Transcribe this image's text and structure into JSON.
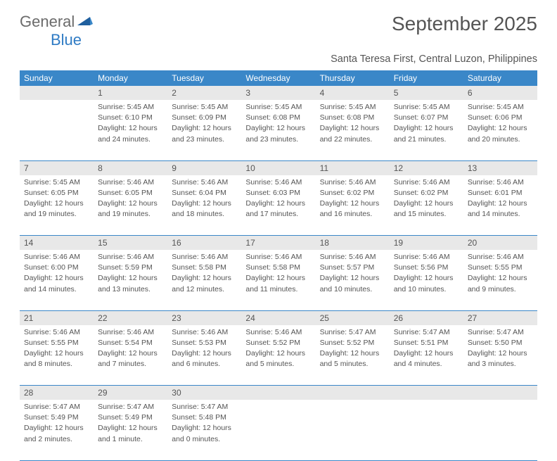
{
  "brand": {
    "part1": "General",
    "part2": "Blue"
  },
  "title": "September 2025",
  "subtitle": "Santa Teresa First, Central Luzon, Philippines",
  "colors": {
    "header_bg": "#3a87c8",
    "header_text": "#ffffff",
    "daynum_bg": "#e8e8e8",
    "rule": "#3a87c8",
    "text": "#555555",
    "logo_gray": "#6b6b6b",
    "logo_blue": "#2f7bc4",
    "page_bg": "#ffffff"
  },
  "weekdays": [
    "Sunday",
    "Monday",
    "Tuesday",
    "Wednesday",
    "Thursday",
    "Friday",
    "Saturday"
  ],
  "weeks": [
    [
      null,
      {
        "n": "1",
        "sr": "Sunrise: 5:45 AM",
        "ss": "Sunset: 6:10 PM",
        "d1": "Daylight: 12 hours",
        "d2": "and 24 minutes."
      },
      {
        "n": "2",
        "sr": "Sunrise: 5:45 AM",
        "ss": "Sunset: 6:09 PM",
        "d1": "Daylight: 12 hours",
        "d2": "and 23 minutes."
      },
      {
        "n": "3",
        "sr": "Sunrise: 5:45 AM",
        "ss": "Sunset: 6:08 PM",
        "d1": "Daylight: 12 hours",
        "d2": "and 23 minutes."
      },
      {
        "n": "4",
        "sr": "Sunrise: 5:45 AM",
        "ss": "Sunset: 6:08 PM",
        "d1": "Daylight: 12 hours",
        "d2": "and 22 minutes."
      },
      {
        "n": "5",
        "sr": "Sunrise: 5:45 AM",
        "ss": "Sunset: 6:07 PM",
        "d1": "Daylight: 12 hours",
        "d2": "and 21 minutes."
      },
      {
        "n": "6",
        "sr": "Sunrise: 5:45 AM",
        "ss": "Sunset: 6:06 PM",
        "d1": "Daylight: 12 hours",
        "d2": "and 20 minutes."
      }
    ],
    [
      {
        "n": "7",
        "sr": "Sunrise: 5:45 AM",
        "ss": "Sunset: 6:05 PM",
        "d1": "Daylight: 12 hours",
        "d2": "and 19 minutes."
      },
      {
        "n": "8",
        "sr": "Sunrise: 5:46 AM",
        "ss": "Sunset: 6:05 PM",
        "d1": "Daylight: 12 hours",
        "d2": "and 19 minutes."
      },
      {
        "n": "9",
        "sr": "Sunrise: 5:46 AM",
        "ss": "Sunset: 6:04 PM",
        "d1": "Daylight: 12 hours",
        "d2": "and 18 minutes."
      },
      {
        "n": "10",
        "sr": "Sunrise: 5:46 AM",
        "ss": "Sunset: 6:03 PM",
        "d1": "Daylight: 12 hours",
        "d2": "and 17 minutes."
      },
      {
        "n": "11",
        "sr": "Sunrise: 5:46 AM",
        "ss": "Sunset: 6:02 PM",
        "d1": "Daylight: 12 hours",
        "d2": "and 16 minutes."
      },
      {
        "n": "12",
        "sr": "Sunrise: 5:46 AM",
        "ss": "Sunset: 6:02 PM",
        "d1": "Daylight: 12 hours",
        "d2": "and 15 minutes."
      },
      {
        "n": "13",
        "sr": "Sunrise: 5:46 AM",
        "ss": "Sunset: 6:01 PM",
        "d1": "Daylight: 12 hours",
        "d2": "and 14 minutes."
      }
    ],
    [
      {
        "n": "14",
        "sr": "Sunrise: 5:46 AM",
        "ss": "Sunset: 6:00 PM",
        "d1": "Daylight: 12 hours",
        "d2": "and 14 minutes."
      },
      {
        "n": "15",
        "sr": "Sunrise: 5:46 AM",
        "ss": "Sunset: 5:59 PM",
        "d1": "Daylight: 12 hours",
        "d2": "and 13 minutes."
      },
      {
        "n": "16",
        "sr": "Sunrise: 5:46 AM",
        "ss": "Sunset: 5:58 PM",
        "d1": "Daylight: 12 hours",
        "d2": "and 12 minutes."
      },
      {
        "n": "17",
        "sr": "Sunrise: 5:46 AM",
        "ss": "Sunset: 5:58 PM",
        "d1": "Daylight: 12 hours",
        "d2": "and 11 minutes."
      },
      {
        "n": "18",
        "sr": "Sunrise: 5:46 AM",
        "ss": "Sunset: 5:57 PM",
        "d1": "Daylight: 12 hours",
        "d2": "and 10 minutes."
      },
      {
        "n": "19",
        "sr": "Sunrise: 5:46 AM",
        "ss": "Sunset: 5:56 PM",
        "d1": "Daylight: 12 hours",
        "d2": "and 10 minutes."
      },
      {
        "n": "20",
        "sr": "Sunrise: 5:46 AM",
        "ss": "Sunset: 5:55 PM",
        "d1": "Daylight: 12 hours",
        "d2": "and 9 minutes."
      }
    ],
    [
      {
        "n": "21",
        "sr": "Sunrise: 5:46 AM",
        "ss": "Sunset: 5:55 PM",
        "d1": "Daylight: 12 hours",
        "d2": "and 8 minutes."
      },
      {
        "n": "22",
        "sr": "Sunrise: 5:46 AM",
        "ss": "Sunset: 5:54 PM",
        "d1": "Daylight: 12 hours",
        "d2": "and 7 minutes."
      },
      {
        "n": "23",
        "sr": "Sunrise: 5:46 AM",
        "ss": "Sunset: 5:53 PM",
        "d1": "Daylight: 12 hours",
        "d2": "and 6 minutes."
      },
      {
        "n": "24",
        "sr": "Sunrise: 5:46 AM",
        "ss": "Sunset: 5:52 PM",
        "d1": "Daylight: 12 hours",
        "d2": "and 5 minutes."
      },
      {
        "n": "25",
        "sr": "Sunrise: 5:47 AM",
        "ss": "Sunset: 5:52 PM",
        "d1": "Daylight: 12 hours",
        "d2": "and 5 minutes."
      },
      {
        "n": "26",
        "sr": "Sunrise: 5:47 AM",
        "ss": "Sunset: 5:51 PM",
        "d1": "Daylight: 12 hours",
        "d2": "and 4 minutes."
      },
      {
        "n": "27",
        "sr": "Sunrise: 5:47 AM",
        "ss": "Sunset: 5:50 PM",
        "d1": "Daylight: 12 hours",
        "d2": "and 3 minutes."
      }
    ],
    [
      {
        "n": "28",
        "sr": "Sunrise: 5:47 AM",
        "ss": "Sunset: 5:49 PM",
        "d1": "Daylight: 12 hours",
        "d2": "and 2 minutes."
      },
      {
        "n": "29",
        "sr": "Sunrise: 5:47 AM",
        "ss": "Sunset: 5:49 PM",
        "d1": "Daylight: 12 hours",
        "d2": "and 1 minute."
      },
      {
        "n": "30",
        "sr": "Sunrise: 5:47 AM",
        "ss": "Sunset: 5:48 PM",
        "d1": "Daylight: 12 hours",
        "d2": "and 0 minutes."
      },
      null,
      null,
      null,
      null
    ]
  ]
}
